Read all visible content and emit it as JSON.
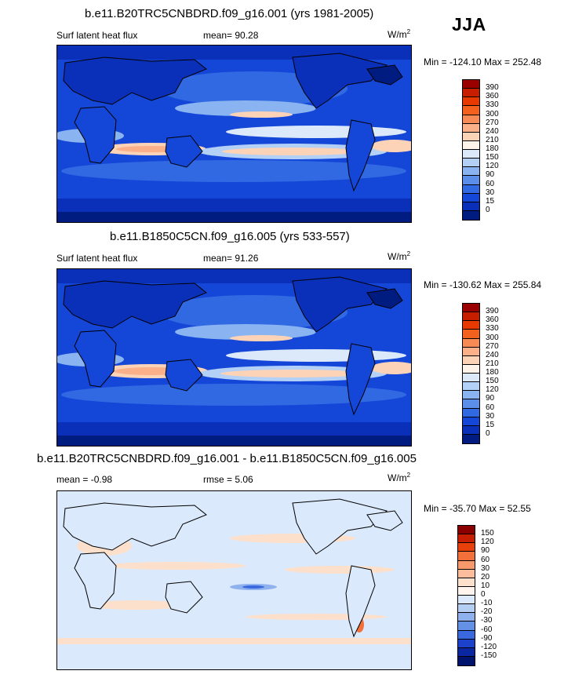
{
  "season": "JJA",
  "panels": [
    {
      "title": "b.e11.B20TRC5CNBDRD.f09_g16.001 (yrs 1981-2005)",
      "left": "Surf latent heat flux",
      "center": "mean=  90.28",
      "units": "W/m",
      "units_sup": "2",
      "minmax": "Min = -124.10 Max = 252.48",
      "levels": [
        "390",
        "360",
        "330",
        "300",
        "270",
        "240",
        "210",
        "180",
        "150",
        "120",
        "90",
        "60",
        "30",
        "15",
        "0"
      ],
      "colors": [
        "#9a0000",
        "#c81e00",
        "#e83a00",
        "#f4601e",
        "#f88a55",
        "#fbb08a",
        "#fdd3b8",
        "#fff3ea",
        "#dbe9fb",
        "#b3d0f6",
        "#89b3f1",
        "#5b8ee8",
        "#3169e2",
        "#1447d8",
        "#0a2fb8",
        "#001c80"
      ]
    },
    {
      "title": "b.e11.B1850C5CN.f09_g16.005 (yrs 533-557)",
      "left": "Surf latent heat flux",
      "center": "mean=  91.26",
      "units": "W/m",
      "units_sup": "2",
      "minmax": "Min = -130.62 Max = 255.84",
      "levels": [
        "390",
        "360",
        "330",
        "300",
        "270",
        "240",
        "210",
        "180",
        "150",
        "120",
        "90",
        "60",
        "30",
        "15",
        "0"
      ],
      "colors": [
        "#9a0000",
        "#c81e00",
        "#e83a00",
        "#f4601e",
        "#f88a55",
        "#fbb08a",
        "#fdd3b8",
        "#fff3ea",
        "#dbe9fb",
        "#b3d0f6",
        "#89b3f1",
        "#5b8ee8",
        "#3169e2",
        "#1447d8",
        "#0a2fb8",
        "#001c80"
      ]
    },
    {
      "title": "b.e11.B20TRC5CNBDRD.f09_g16.001 - b.e11.B1850C5CN.f09_g16.005",
      "left": "mean =  -0.98",
      "center": "rmse =   5.06",
      "units": "W/m",
      "units_sup": "2",
      "minmax": "Min = -35.70 Max =  52.55",
      "levels": [
        "150",
        "120",
        "90",
        "60",
        "30",
        "20",
        "10",
        "0",
        "-10",
        "-20",
        "-30",
        "-60",
        "-90",
        "-120",
        "-150"
      ],
      "colors": [
        "#8a0000",
        "#c81e00",
        "#e8400a",
        "#f4703a",
        "#f8996c",
        "#fbbd9c",
        "#fde0cc",
        "#fff5ee",
        "#dae9fb",
        "#b5cff4",
        "#8fb2ee",
        "#6490e6",
        "#3a68de",
        "#1c42cc",
        "#0a26a0",
        "#00146e"
      ]
    }
  ]
}
